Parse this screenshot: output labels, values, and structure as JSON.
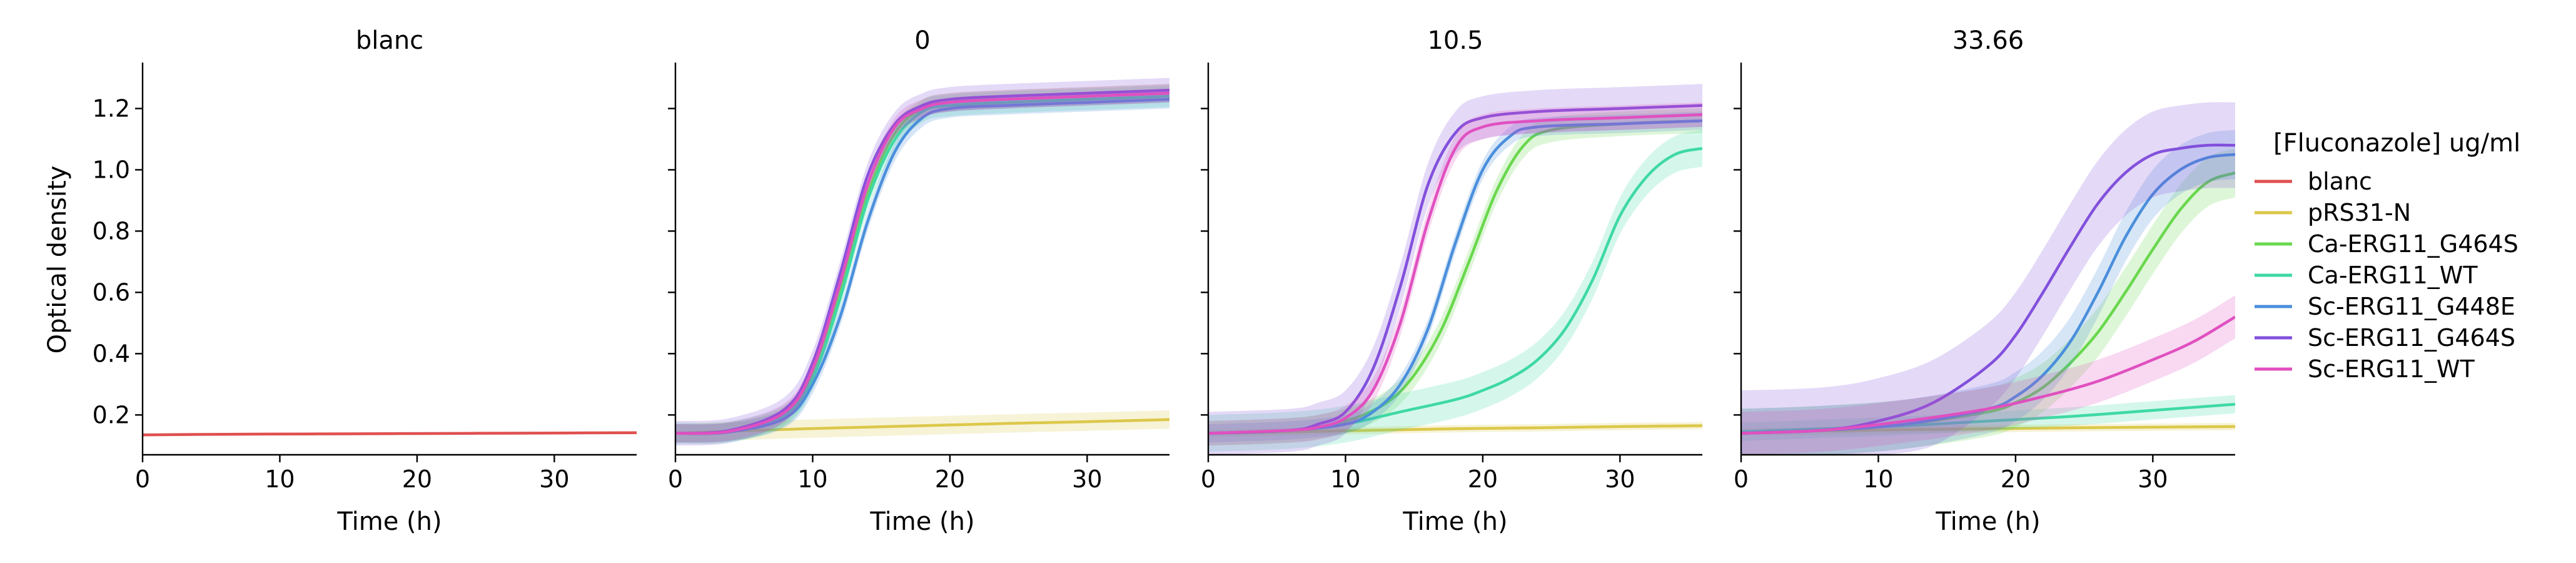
{
  "chart_data": {
    "type": "line",
    "ylabel": "Optical density",
    "xlabel": "Time (h)",
    "xlim": [
      0,
      36
    ],
    "ylim": [
      0.07,
      1.35
    ],
    "xticks": [
      "0",
      "10",
      "20",
      "30"
    ],
    "yticks": [
      "0.2",
      "0.4",
      "0.6",
      "0.8",
      "1.0",
      "1.2"
    ],
    "legend": {
      "title": "[Fluconazole] ug/ml",
      "placement": "right",
      "entries": [
        {
          "name": "blanc",
          "color": "#e05050"
        },
        {
          "name": "pRS31-N",
          "color": "#dcc84a"
        },
        {
          "name": "Ca-ERG11_G464S",
          "color": "#6ad84e"
        },
        {
          "name": "Ca-ERG11_WT",
          "color": "#3fd9a4"
        },
        {
          "name": "Sc-ERG11_G448E",
          "color": "#4a8fdc"
        },
        {
          "name": "Sc-ERG11_G464S",
          "color": "#8250dc"
        },
        {
          "name": "Sc-ERG11_WT",
          "color": "#e050c0"
        }
      ]
    },
    "panels": [
      {
        "title": "blanc",
        "series": [
          {
            "name": "blanc",
            "x": [
              0,
              6,
              12,
              18,
              24,
              30,
              36
            ],
            "y": [
              0.135,
              0.137,
              0.138,
              0.139,
              0.14,
              0.141,
              0.142
            ],
            "band": 0.004
          }
        ]
      },
      {
        "title": "0",
        "series": [
          {
            "name": "pRS31-N",
            "x": [
              0,
              6,
              12,
              18,
              24,
              30,
              36
            ],
            "y": [
              0.14,
              0.15,
              0.158,
              0.165,
              0.172,
              0.178,
              0.185
            ],
            "band": 0.03
          },
          {
            "name": "Ca-ERG11_G464S",
            "x": [
              0,
              4,
              8,
              10,
              12,
              14,
              16,
              18,
              20,
              24,
              30,
              36
            ],
            "y": [
              0.14,
              0.145,
              0.2,
              0.33,
              0.6,
              0.92,
              1.12,
              1.2,
              1.22,
              1.23,
              1.24,
              1.25
            ],
            "band": 0.03
          },
          {
            "name": "Ca-ERG11_WT",
            "x": [
              0,
              4,
              8,
              10,
              12,
              14,
              16,
              18,
              20,
              24,
              30,
              36
            ],
            "y": [
              0.14,
              0.145,
              0.2,
              0.32,
              0.58,
              0.9,
              1.1,
              1.19,
              1.21,
              1.22,
              1.23,
              1.24
            ],
            "band": 0.035
          },
          {
            "name": "Sc-ERG11_G448E",
            "x": [
              0,
              4,
              8,
              10,
              12,
              14,
              16,
              18,
              20,
              24,
              30,
              36
            ],
            "y": [
              0.14,
              0.145,
              0.19,
              0.3,
              0.52,
              0.83,
              1.06,
              1.17,
              1.2,
              1.21,
              1.22,
              1.23
            ],
            "band": 0.03
          },
          {
            "name": "Sc-ERG11_G464S",
            "x": [
              0,
              4,
              8,
              10,
              12,
              14,
              16,
              18,
              20,
              24,
              30,
              36
            ],
            "y": [
              0.14,
              0.15,
              0.22,
              0.37,
              0.66,
              0.98,
              1.15,
              1.21,
              1.23,
              1.24,
              1.25,
              1.26
            ],
            "band": 0.04
          },
          {
            "name": "Sc-ERG11_WT",
            "x": [
              0,
              4,
              8,
              10,
              12,
              14,
              16,
              18,
              20,
              24,
              30,
              36
            ],
            "y": [
              0.14,
              0.147,
              0.21,
              0.35,
              0.63,
              0.95,
              1.14,
              1.2,
              1.22,
              1.23,
              1.24,
              1.25
            ],
            "band": 0.03
          }
        ]
      },
      {
        "title": "10.5",
        "series": [
          {
            "name": "pRS31-N",
            "x": [
              0,
              6,
              12,
              18,
              24,
              30,
              36
            ],
            "y": [
              0.14,
              0.145,
              0.15,
              0.155,
              0.158,
              0.162,
              0.165
            ],
            "band": 0.012
          },
          {
            "name": "Ca-ERG11_G464S",
            "x": [
              0,
              6,
              10,
              13,
              15,
              17,
              19,
              21,
              23,
              25,
              30,
              36
            ],
            "y": [
              0.14,
              0.15,
              0.18,
              0.24,
              0.33,
              0.48,
              0.7,
              0.93,
              1.08,
              1.13,
              1.15,
              1.16
            ],
            "band": 0.04
          },
          {
            "name": "Ca-ERG11_WT",
            "x": [
              0,
              6,
              10,
              14,
              18,
              20,
              22,
              24,
              26,
              28,
              30,
              32,
              34,
              36
            ],
            "y": [
              0.14,
              0.15,
              0.17,
              0.21,
              0.25,
              0.28,
              0.32,
              0.38,
              0.48,
              0.64,
              0.85,
              0.98,
              1.05,
              1.07
            ],
            "band": 0.06
          },
          {
            "name": "Sc-ERG11_G448E",
            "x": [
              0,
              6,
              10,
              12,
              14,
              16,
              18,
              20,
              22,
              24,
              30,
              36
            ],
            "y": [
              0.14,
              0.15,
              0.17,
              0.21,
              0.3,
              0.48,
              0.76,
              1.0,
              1.11,
              1.14,
              1.15,
              1.16
            ],
            "band": 0.03
          },
          {
            "name": "Sc-ERG11_G464S",
            "x": [
              0,
              6,
              8,
              10,
              12,
              14,
              16,
              18,
              20,
              24,
              30,
              36
            ],
            "y": [
              0.14,
              0.15,
              0.17,
              0.21,
              0.35,
              0.62,
              0.95,
              1.12,
              1.17,
              1.19,
              1.2,
              1.21
            ],
            "band": 0.07
          },
          {
            "name": "Sc-ERG11_WT",
            "x": [
              0,
              6,
              8,
              10,
              12,
              14,
              16,
              18,
              20,
              24,
              30,
              36
            ],
            "y": [
              0.14,
              0.15,
              0.16,
              0.19,
              0.28,
              0.5,
              0.83,
              1.07,
              1.14,
              1.16,
              1.17,
              1.18
            ],
            "band": 0.04
          }
        ]
      },
      {
        "title": "33.66",
        "series": [
          {
            "name": "pRS31-N",
            "x": [
              0,
              6,
              12,
              18,
              24,
              30,
              36
            ],
            "y": [
              0.145,
              0.148,
              0.152,
              0.155,
              0.158,
              0.16,
              0.162
            ],
            "band": 0.012
          },
          {
            "name": "Ca-ERG11_G464S",
            "x": [
              0,
              6,
              12,
              18,
              20,
              22,
              24,
              26,
              28,
              30,
              32,
              34,
              36
            ],
            "y": [
              0.14,
              0.15,
              0.17,
              0.21,
              0.24,
              0.29,
              0.37,
              0.47,
              0.6,
              0.74,
              0.87,
              0.96,
              0.99
            ],
            "band": 0.08
          },
          {
            "name": "Ca-ERG11_WT",
            "x": [
              0,
              6,
              12,
              18,
              24,
              30,
              36
            ],
            "y": [
              0.145,
              0.155,
              0.165,
              0.18,
              0.195,
              0.215,
              0.235
            ],
            "band": 0.03
          },
          {
            "name": "Sc-ERG11_G448E",
            "x": [
              0,
              6,
              12,
              18,
              20,
              22,
              24,
              26,
              28,
              30,
              32,
              34,
              36
            ],
            "y": [
              0.14,
              0.15,
              0.17,
              0.22,
              0.26,
              0.33,
              0.44,
              0.6,
              0.78,
              0.92,
              1.0,
              1.04,
              1.05
            ],
            "band": 0.08
          },
          {
            "name": "Sc-ERG11_G464S",
            "x": [
              0,
              6,
              10,
              14,
              18,
              20,
              22,
              24,
              26,
              28,
              30,
              32,
              34,
              36
            ],
            "y": [
              0.14,
              0.15,
              0.18,
              0.24,
              0.36,
              0.46,
              0.6,
              0.75,
              0.89,
              0.99,
              1.05,
              1.07,
              1.08,
              1.08
            ],
            "band": 0.14
          },
          {
            "name": "Sc-ERG11_WT",
            "x": [
              0,
              6,
              12,
              18,
              22,
              26,
              30,
              33,
              36
            ],
            "y": [
              0.14,
              0.15,
              0.18,
              0.22,
              0.26,
              0.31,
              0.38,
              0.44,
              0.52
            ],
            "band": 0.07
          }
        ]
      }
    ]
  }
}
